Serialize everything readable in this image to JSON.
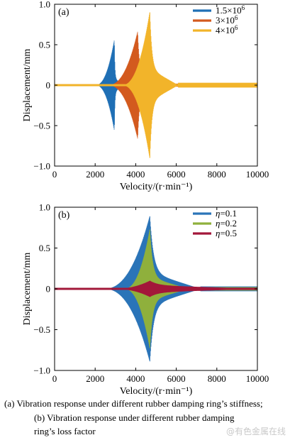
{
  "chart_data": [
    {
      "type": "line",
      "panel_label": "(a)",
      "xlabel": "Velocity/(r·min⁻¹)",
      "ylabel": "Displacement/mm",
      "xlim": [
        0,
        10000
      ],
      "ylim": [
        -1.0,
        1.0
      ],
      "x_ticks": [
        "0",
        "2000",
        "4000",
        "6000",
        "8000",
        "10000"
      ],
      "y_ticks": [
        "−1.0",
        "−0.5",
        "0",
        "0.5",
        "1.0"
      ],
      "legend_position": "top-right",
      "series": [
        {
          "name": "1.5×10^6",
          "name_base": "1.5×10",
          "name_exp": "6",
          "color": "#1f6fb5",
          "peak_x": 2950,
          "peak_y": 0.57,
          "start_x": 2000,
          "end_x": 3300,
          "post_amp": 0.1
        },
        {
          "name": "3×10^6",
          "name_base": "3×10",
          "name_exp": "6",
          "color": "#d35a1e",
          "peak_x": 4100,
          "peak_y": 0.67,
          "start_x": 2600,
          "end_x": 5300,
          "post_amp": 0.12
        },
        {
          "name": "4×10^6",
          "name_base": "4×10",
          "name_exp": "6",
          "color": "#f2b42a",
          "peak_x": 4700,
          "peak_y": 0.92,
          "start_x": 3300,
          "end_x": 6100,
          "post_amp": 0.2
        }
      ]
    },
    {
      "type": "line",
      "panel_label": "(b)",
      "xlabel": "Velocity/(r·min⁻¹)",
      "ylabel": "Displacement/mm",
      "xlim": [
        0,
        10000
      ],
      "ylim": [
        -1.0,
        1.0
      ],
      "x_ticks": [
        "0",
        "2000",
        "4000",
        "6000",
        "8000",
        "10000"
      ],
      "y_ticks": [
        "−1.0",
        "−0.5",
        "0",
        "0.5",
        "1.0"
      ],
      "legend_position": "top-right",
      "series": [
        {
          "name": "η=0.1",
          "name_sym": "η",
          "name_val": "=0.1",
          "color": "#2a74b8",
          "peak_x": 4700,
          "peak_y": 0.9,
          "start_x": 2400,
          "end_x": 7200,
          "post_amp": 0.2
        },
        {
          "name": "η=0.2",
          "name_sym": "η",
          "name_val": "=0.2",
          "color": "#8fb03c",
          "peak_x": 4700,
          "peak_y": 0.74,
          "start_x": 3400,
          "end_x": 6600,
          "post_amp": 0.14
        },
        {
          "name": "η=0.5",
          "name_sym": "η",
          "name_val": "=0.5",
          "color": "#a3173a",
          "peak_x": 4700,
          "peak_y": 0.1,
          "start_x": 2800,
          "end_x": 10000,
          "post_amp": 0.045
        }
      ]
    }
  ],
  "caption": {
    "line1": "(a)   Vibration response under different rubber damping ring’s stiffness;",
    "line2": "(b) Vibration response under different rubber damping",
    "line3": "ring’s loss factor"
  },
  "watermark": "@有色金属在线"
}
